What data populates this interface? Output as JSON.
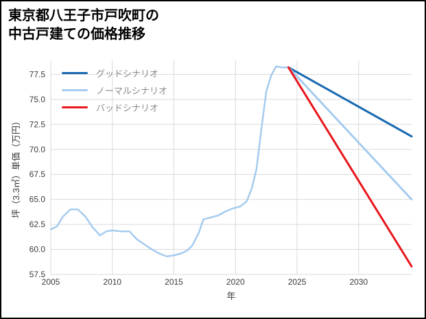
{
  "title": {
    "line1": "東京都八王子市戸吹町の",
    "line2": "中古戸建ての価格推移"
  },
  "chart_data": {
    "type": "line",
    "title": "東京都八王子市戸吹町の中古戸建ての価格推移",
    "xlabel": "年",
    "ylabel": "坪（3.3㎡）単価（万円）",
    "xlim": [
      2005,
      2034.3
    ],
    "ylim": [
      57.5,
      78.9
    ],
    "x_ticks": [
      2005,
      2010,
      2015,
      2020,
      2025,
      2030
    ],
    "y_ticks": [
      57.5,
      60.0,
      62.5,
      65.0,
      67.5,
      70.0,
      72.5,
      75.0,
      77.5
    ],
    "grid": true,
    "legend_position": "top-left",
    "colors": {
      "grid": "#d9d9d9",
      "tick": "#3a3a3a",
      "axis_label": "#3a3a3a",
      "legend_text": "#8a8a8a",
      "good": "#1668b0",
      "normal": "#a5cbef",
      "bad": "#e8151c",
      "history": "#a5cbef"
    },
    "legend": [
      {
        "label": "グッドシナリオ",
        "color": "#1668b0",
        "series": "good"
      },
      {
        "label": "ノーマルシナリオ",
        "color": "#a5cbef",
        "series": "normal"
      },
      {
        "label": "バッドシナリオ",
        "color": "#e8151c",
        "series": "bad"
      }
    ],
    "series": [
      {
        "id": "history",
        "color": "#a5cbef",
        "width": 2.5,
        "x": [
          2005,
          2005.5,
          2006,
          2006.6,
          2007.2,
          2007.8,
          2008.4,
          2009,
          2009.5,
          2010,
          2010.7,
          2011.4,
          2012,
          2012.6,
          2013.2,
          2013.8,
          2014.4,
          2015,
          2015.6,
          2016.1,
          2016.5,
          2017,
          2017.4,
          2018,
          2018.6,
          2019.2,
          2019.8,
          2020.4,
          2020.9,
          2021.3,
          2021.7,
          2022.1,
          2022.5,
          2022.9,
          2023.3,
          2023.7,
          2024.3
        ],
        "y": [
          62.0,
          62.3,
          63.3,
          64.0,
          64.0,
          63.3,
          62.2,
          61.4,
          61.8,
          61.9,
          61.8,
          61.8,
          61.0,
          60.5,
          60.0,
          59.6,
          59.3,
          59.4,
          59.6,
          59.9,
          60.4,
          61.6,
          63.0,
          63.2,
          63.4,
          63.8,
          64.1,
          64.3,
          64.8,
          66.0,
          68.0,
          72.0,
          75.8,
          77.4,
          78.3,
          78.2,
          78.2
        ]
      },
      {
        "id": "good",
        "color": "#1668b0",
        "width": 3,
        "x": [
          2024.3,
          2034.3
        ],
        "y": [
          78.2,
          71.3
        ]
      },
      {
        "id": "normal",
        "color": "#a5cbef",
        "width": 3,
        "x": [
          2024.3,
          2034.3
        ],
        "y": [
          78.2,
          65.0
        ]
      },
      {
        "id": "bad",
        "color": "#e8151c",
        "width": 3,
        "x": [
          2024.3,
          2034.3
        ],
        "y": [
          78.2,
          58.3
        ]
      }
    ]
  }
}
